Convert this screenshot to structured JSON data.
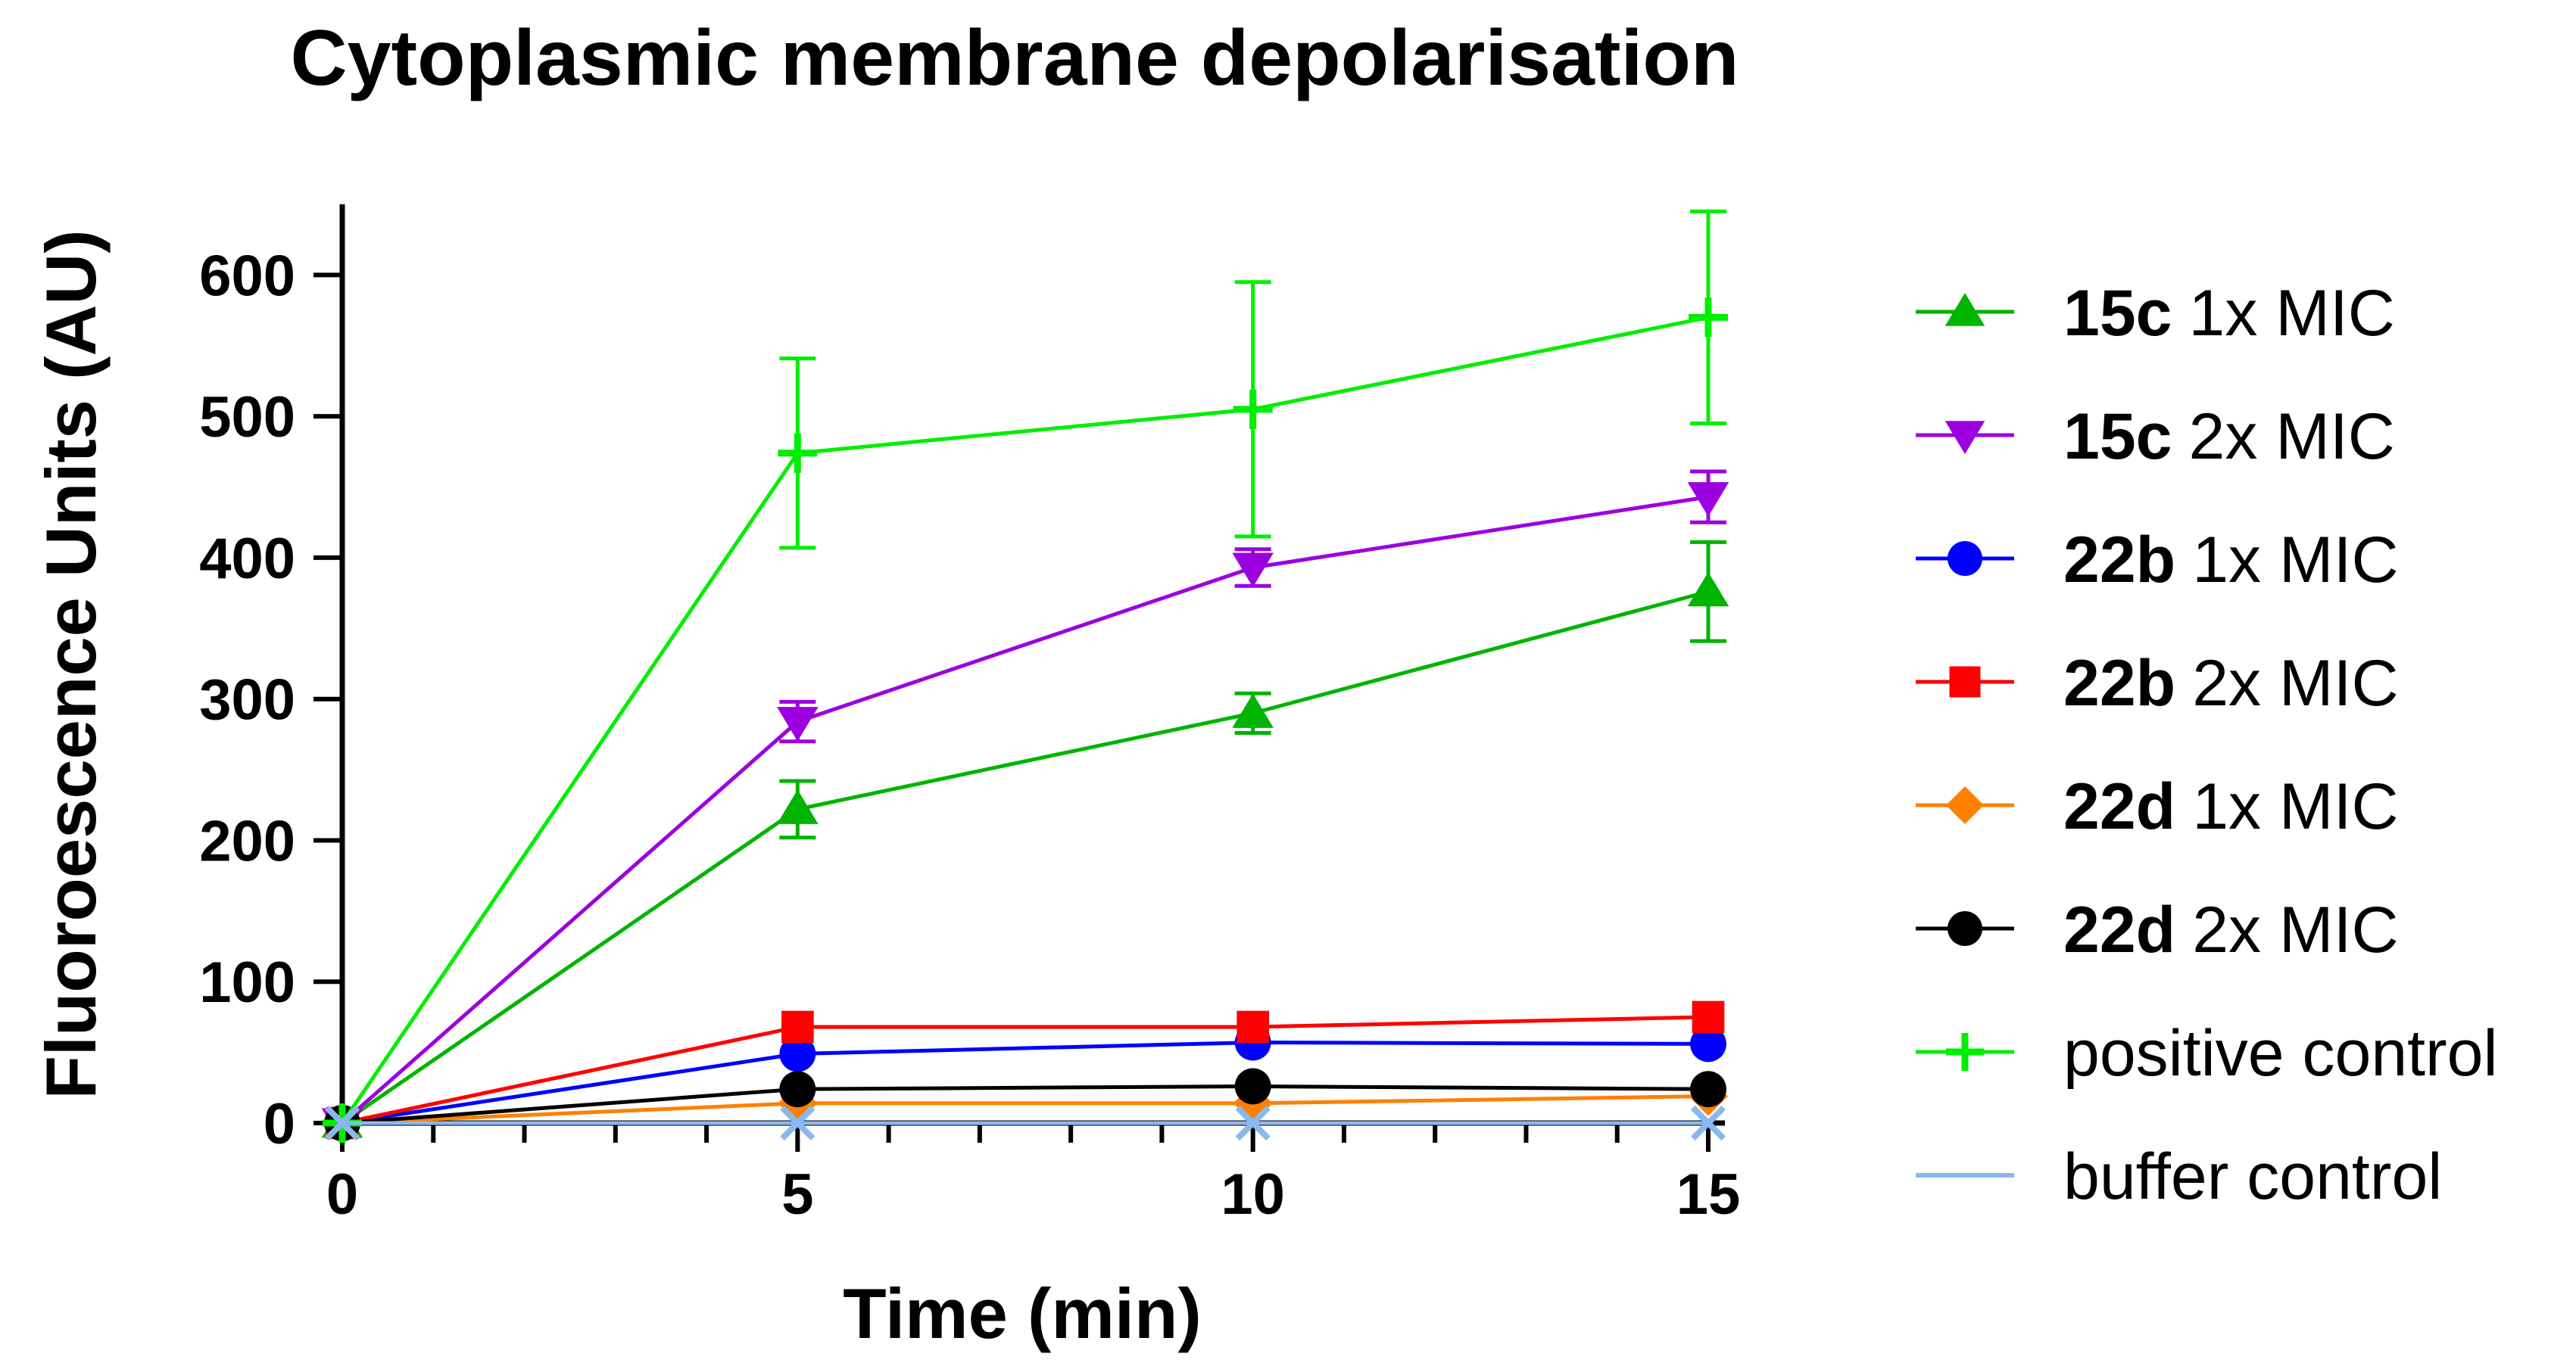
{
  "chart_data": {
    "type": "line",
    "title": "Cytoplasmic membrane depolarisation",
    "xlabel": "Time (min)",
    "ylabel": "Fluoroescence Units (AU)",
    "xlim": [
      0,
      15
    ],
    "ylim": [
      0,
      650
    ],
    "x_ticks": [
      0,
      5,
      10,
      15
    ],
    "x_minor_step": 1,
    "y_ticks": [
      0,
      100,
      200,
      300,
      400,
      500,
      600
    ],
    "grid": false,
    "legend_position": "right",
    "x": [
      0,
      5,
      10,
      15
    ],
    "series": [
      {
        "name": "15c 1x MIC",
        "compound": "15c",
        "dose": "1x MIC",
        "color": "#00b400",
        "marker": "triangle-up",
        "values": [
          0,
          222,
          290,
          376
        ],
        "errors": [
          0,
          20,
          14,
          35
        ]
      },
      {
        "name": "15c 2x MIC",
        "compound": "15c",
        "dose": "2x MIC",
        "color": "#9d00e0",
        "marker": "triangle-down",
        "values": [
          0,
          284,
          393,
          443
        ],
        "errors": [
          0,
          14,
          13,
          18
        ]
      },
      {
        "name": "22b 1x MIC",
        "compound": "22b",
        "dose": "1x MIC",
        "color": "#0000ff",
        "marker": "circle",
        "values": [
          0,
          49,
          57,
          56
        ],
        "errors": [
          0,
          0,
          0,
          0
        ]
      },
      {
        "name": "22b 2x MIC",
        "compound": "22b",
        "dose": "2x MIC",
        "color": "#ff0000",
        "marker": "square",
        "values": [
          0,
          68,
          68,
          75
        ],
        "errors": [
          0,
          0,
          0,
          0
        ]
      },
      {
        "name": "22d 1x MIC",
        "compound": "22d",
        "dose": "1x MIC",
        "color": "#ff8000",
        "marker": "diamond",
        "values": [
          0,
          14,
          14,
          19
        ],
        "errors": [
          0,
          0,
          0,
          0
        ]
      },
      {
        "name": "22d 2x MIC",
        "compound": "22d",
        "dose": "2x MIC",
        "color": "#000000",
        "marker": "circle",
        "values": [
          0,
          24,
          26,
          24
        ],
        "errors": [
          0,
          0,
          0,
          0
        ]
      },
      {
        "name": "positive control",
        "compound": "",
        "dose": "positive control",
        "color": "#00ee00",
        "marker": "plus",
        "values": [
          0,
          474,
          505,
          570
        ],
        "errors": [
          0,
          67,
          90,
          75
        ]
      },
      {
        "name": "buffer control",
        "compound": "",
        "dose": "buffer control",
        "color": "#8ab8ee",
        "marker": "cross",
        "values": [
          0,
          0,
          0,
          0
        ],
        "errors": [
          0,
          0,
          0,
          0
        ]
      }
    ]
  }
}
